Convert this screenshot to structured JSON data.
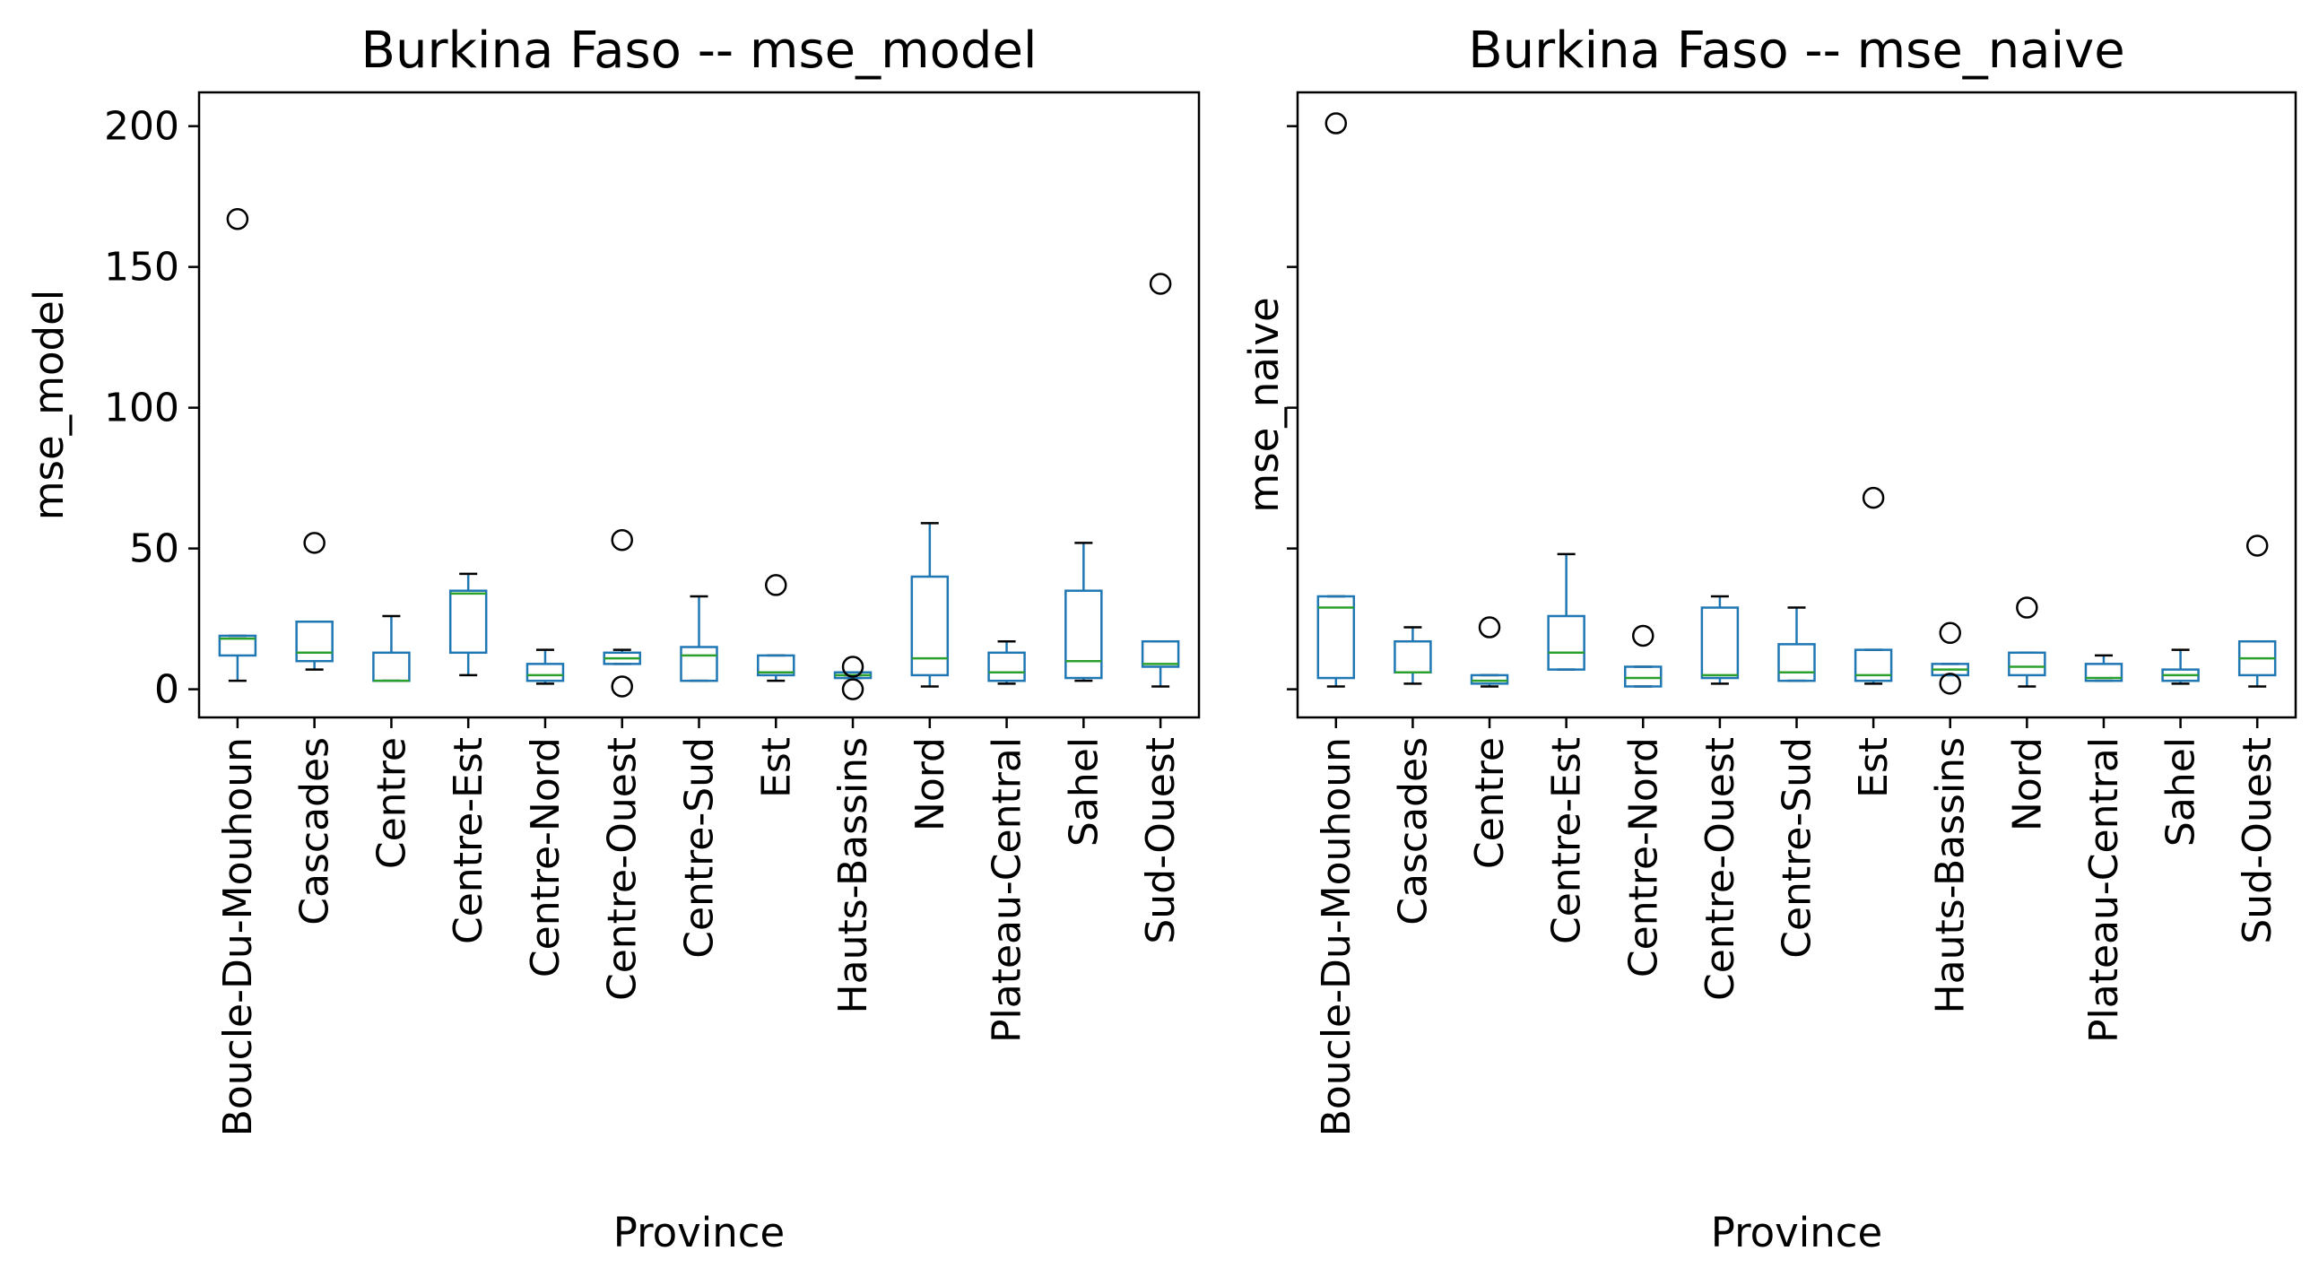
{
  "chart_data": [
    {
      "type": "box",
      "title": "Burkina Faso -- mse_model",
      "xlabel": "Province",
      "ylabel": "mse_model",
      "ylim": [
        -10,
        212
      ],
      "yticks": [
        0,
        50,
        100,
        150,
        200
      ],
      "show_ytick_labels": true,
      "grid": false,
      "categories": [
        "Boucle-Du-Mouhoun",
        "Cascades",
        "Centre",
        "Centre-Est",
        "Centre-Nord",
        "Centre-Ouest",
        "Centre-Sud",
        "Est",
        "Hauts-Bassins",
        "Nord",
        "Plateau-Central",
        "Sahel",
        "Sud-Ouest"
      ],
      "boxes": [
        {
          "whisker_low": 3,
          "q1": 12,
          "median": 18,
          "q3": 19,
          "whisker_high": 19,
          "outliers": [
            167
          ]
        },
        {
          "whisker_low": 7,
          "q1": 10,
          "median": 13,
          "q3": 24,
          "whisker_high": 24,
          "outliers": [
            52
          ]
        },
        {
          "whisker_low": 3,
          "q1": 3,
          "median": 3,
          "q3": 13,
          "whisker_high": 26,
          "outliers": []
        },
        {
          "whisker_low": 5,
          "q1": 13,
          "median": 34,
          "q3": 35,
          "whisker_high": 41,
          "outliers": []
        },
        {
          "whisker_low": 2,
          "q1": 3,
          "median": 5,
          "q3": 9,
          "whisker_high": 14,
          "outliers": []
        },
        {
          "whisker_low": 9,
          "q1": 9,
          "median": 11,
          "q3": 13,
          "whisker_high": 14,
          "outliers": [
            53,
            1
          ]
        },
        {
          "whisker_low": 3,
          "q1": 3,
          "median": 12,
          "q3": 15,
          "whisker_high": 33,
          "outliers": []
        },
        {
          "whisker_low": 3,
          "q1": 5,
          "median": 6,
          "q3": 12,
          "whisker_high": 12,
          "outliers": [
            37
          ]
        },
        {
          "whisker_low": 4,
          "q1": 4,
          "median": 5,
          "q3": 6,
          "whisker_high": 6,
          "outliers": [
            8,
            0
          ]
        },
        {
          "whisker_low": 1,
          "q1": 5,
          "median": 11,
          "q3": 40,
          "whisker_high": 59,
          "outliers": []
        },
        {
          "whisker_low": 2,
          "q1": 3,
          "median": 6,
          "q3": 13,
          "whisker_high": 17,
          "outliers": []
        },
        {
          "whisker_low": 3,
          "q1": 4,
          "median": 10,
          "q3": 35,
          "whisker_high": 52,
          "outliers": []
        },
        {
          "whisker_low": 1,
          "q1": 8,
          "median": 9,
          "q3": 17,
          "whisker_high": 17,
          "outliers": [
            144
          ]
        }
      ]
    },
    {
      "type": "box",
      "title": "Burkina Faso -- mse_naive",
      "xlabel": "Province",
      "ylabel": "mse_naive",
      "ylim": [
        -10,
        212
      ],
      "yticks": [
        0,
        50,
        100,
        150,
        200
      ],
      "show_ytick_labels": false,
      "grid": false,
      "categories": [
        "Boucle-Du-Mouhoun",
        "Cascades",
        "Centre",
        "Centre-Est",
        "Centre-Nord",
        "Centre-Ouest",
        "Centre-Sud",
        "Est",
        "Hauts-Bassins",
        "Nord",
        "Plateau-Central",
        "Sahel",
        "Sud-Ouest"
      ],
      "boxes": [
        {
          "whisker_low": 1,
          "q1": 4,
          "median": 29,
          "q3": 33,
          "whisker_high": 33,
          "outliers": [
            201
          ]
        },
        {
          "whisker_low": 2,
          "q1": 6,
          "median": 6,
          "q3": 17,
          "whisker_high": 22,
          "outliers": []
        },
        {
          "whisker_low": 1,
          "q1": 2,
          "median": 3,
          "q3": 5,
          "whisker_high": 5,
          "outliers": [
            22
          ]
        },
        {
          "whisker_low": 7,
          "q1": 7,
          "median": 13,
          "q3": 26,
          "whisker_high": 48,
          "outliers": []
        },
        {
          "whisker_low": 1,
          "q1": 1,
          "median": 4,
          "q3": 8,
          "whisker_high": 8,
          "outliers": [
            19
          ]
        },
        {
          "whisker_low": 2,
          "q1": 4,
          "median": 5,
          "q3": 29,
          "whisker_high": 33,
          "outliers": []
        },
        {
          "whisker_low": 3,
          "q1": 3,
          "median": 6,
          "q3": 16,
          "whisker_high": 29,
          "outliers": []
        },
        {
          "whisker_low": 2,
          "q1": 3,
          "median": 5,
          "q3": 14,
          "whisker_high": 14,
          "outliers": [
            68
          ]
        },
        {
          "whisker_low": 5,
          "q1": 5,
          "median": 7,
          "q3": 9,
          "whisker_high": 9,
          "outliers": [
            20,
            2
          ]
        },
        {
          "whisker_low": 1,
          "q1": 5,
          "median": 8,
          "q3": 13,
          "whisker_high": 13,
          "outliers": [
            29
          ]
        },
        {
          "whisker_low": 3,
          "q1": 3,
          "median": 4,
          "q3": 9,
          "whisker_high": 12,
          "outliers": []
        },
        {
          "whisker_low": 2,
          "q1": 3,
          "median": 5,
          "q3": 7,
          "whisker_high": 14,
          "outliers": []
        },
        {
          "whisker_low": 1,
          "q1": 5,
          "median": 11,
          "q3": 17,
          "whisker_high": 17,
          "outliers": [
            51
          ]
        }
      ]
    }
  ],
  "colors": {
    "box": "#1f77b4",
    "median": "#2ca02c",
    "whisker": "#1f77b4",
    "cap": "#000000",
    "outlier": "#000000",
    "axes": "#000000",
    "background": "#ffffff"
  }
}
